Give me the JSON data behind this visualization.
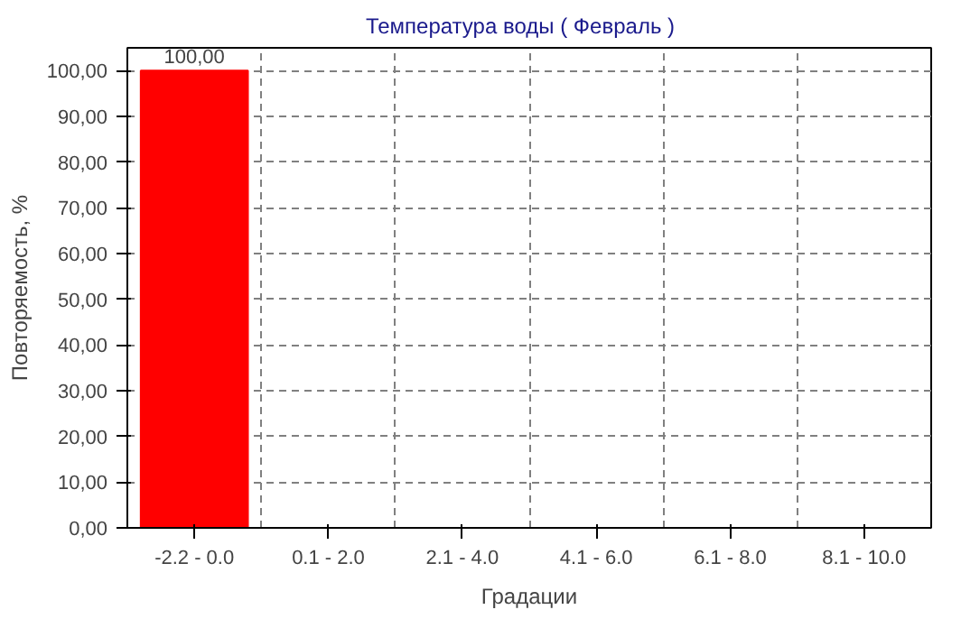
{
  "chart_data": {
    "type": "bar",
    "title": "Температура воды    ( Февраль )",
    "xlabel": "Градации",
    "ylabel": "Повторяемость, %",
    "categories": [
      "-2.2 - 0.0",
      "0.1 - 2.0",
      "2.1 - 4.0",
      "4.1 - 6.0",
      "6.1 - 8.0",
      "8.1 - 10.0"
    ],
    "values": [
      100,
      0,
      0,
      0,
      0,
      0
    ],
    "value_labels": [
      "100,00",
      null,
      null,
      null,
      null,
      null
    ],
    "color": "#ff0000",
    "ylim": [
      0,
      105
    ],
    "yticks": [
      {
        "value": 0,
        "label": "0,00"
      },
      {
        "value": 10,
        "label": "10,00"
      },
      {
        "value": 20,
        "label": "20,00"
      },
      {
        "value": 30,
        "label": "30,00"
      },
      {
        "value": 40,
        "label": "40,00"
      },
      {
        "value": 50,
        "label": "50,00"
      },
      {
        "value": 60,
        "label": "60,00"
      },
      {
        "value": 70,
        "label": "70,00"
      },
      {
        "value": 80,
        "label": "80,00"
      },
      {
        "value": 90,
        "label": "90,00"
      },
      {
        "value": 100,
        "label": "100,00"
      }
    ],
    "grid": true
  }
}
